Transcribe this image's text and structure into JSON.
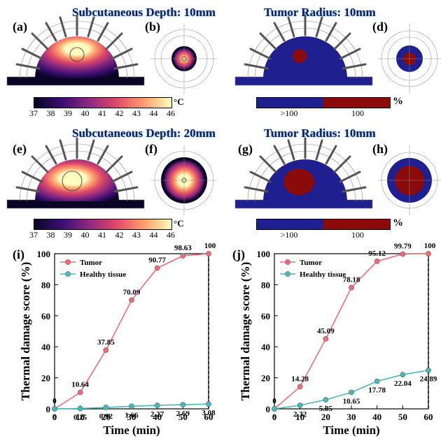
{
  "headers": {
    "depth_10": "Subcutaneous Depth: 10mm",
    "radius_10_top": "Tumor Radius: 10mm",
    "depth_20": "Subcutaneous Depth: 20mm",
    "radius_10_bottom": "Tumor Radius: 10mm"
  },
  "panel_labels": [
    "(a)",
    "(b)",
    "(d)",
    "(e)",
    "(f)",
    "(g)",
    "(h)",
    "(i)",
    "(j)"
  ],
  "temperature_colorbar": {
    "ticks": [
      "37",
      "38",
      "39",
      "40",
      "41",
      "42",
      "43",
      "44",
      "46"
    ],
    "unit": "°C",
    "colors": [
      "#0a0426",
      "#3b0f70",
      "#8c2981",
      "#de4968",
      "#fe9f6d",
      "#fcfdbf"
    ]
  },
  "damage_colorbar": {
    "labels": [
      ">100",
      "100"
    ],
    "unit": "%",
    "colors": [
      "#1f1f8f",
      "#8b0a0a"
    ]
  },
  "chart_data": [
    {
      "type": "line",
      "panel": "(i)",
      "xlabel": "Time (min)",
      "ylabel": "Thermal damage score (%)",
      "x": [
        0,
        10,
        20,
        30,
        40,
        50,
        60
      ],
      "xlim": [
        0,
        60
      ],
      "ylim": [
        0,
        100
      ],
      "xticks": [
        "0",
        "10",
        "20",
        "30",
        "40",
        "50",
        "60"
      ],
      "yticks": [
        "0",
        "20",
        "40",
        "60",
        "80",
        "100"
      ],
      "series": [
        {
          "name": "Tumor",
          "color": "#f06b78",
          "values": [
            0,
            10.64,
            37.85,
            70.09,
            90.77,
            98.63,
            100
          ],
          "labels": [
            "0",
            "10.64",
            "37.85",
            "70.09",
            "90.77",
            "98.63",
            "100"
          ]
        },
        {
          "name": "Healthy tissue",
          "color": "#4cb7b7",
          "values": [
            0,
            0.25,
            0.92,
            1.66,
            2.27,
            2.69,
            3.08
          ],
          "labels": [
            "0",
            "0.25",
            "0.92",
            "1.66",
            "2.27",
            "2.69",
            "3.08"
          ]
        }
      ]
    },
    {
      "type": "line",
      "panel": "(j)",
      "xlabel": "Time (min)",
      "ylabel": "Thermal damage score (%)",
      "x": [
        0,
        10,
        20,
        30,
        40,
        50,
        60
      ],
      "xlim": [
        0,
        60
      ],
      "ylim": [
        0,
        100
      ],
      "xticks": [
        "0",
        "10",
        "20",
        "30",
        "40",
        "50",
        "60"
      ],
      "yticks": [
        "0",
        "20",
        "40",
        "60",
        "80",
        "100"
      ],
      "series": [
        {
          "name": "Tumor",
          "color": "#f06b78",
          "values": [
            0,
            14.28,
            45.09,
            78.18,
            95.12,
            99.79,
            100
          ],
          "labels": [
            "0",
            "14.28",
            "45.09",
            "78.18",
            "95.12",
            "99.79",
            "100"
          ]
        },
        {
          "name": "Healthy tissue",
          "color": "#4cb7b7",
          "values": [
            0,
            2.32,
            5.85,
            10.65,
            17.78,
            22.04,
            24.89
          ],
          "labels": [
            "0",
            "2.32",
            "5.85",
            "10.65",
            "17.78",
            "22.04",
            "24.89"
          ]
        }
      ]
    }
  ]
}
